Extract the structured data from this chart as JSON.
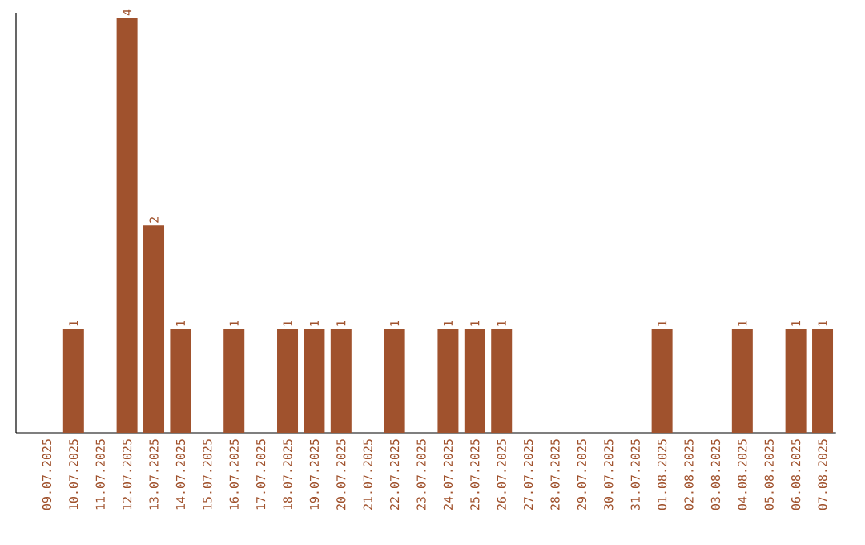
{
  "chart_data": {
    "type": "bar",
    "categories": [
      "09.07.2025",
      "10.07.2025",
      "11.07.2025",
      "12.07.2025",
      "13.07.2025",
      "14.07.2025",
      "15.07.2025",
      "16.07.2025",
      "17.07.2025",
      "18.07.2025",
      "19.07.2025",
      "20.07.2025",
      "21.07.2025",
      "22.07.2025",
      "23.07.2025",
      "24.07.2025",
      "25.07.2025",
      "26.07.2025",
      "27.07.2025",
      "28.07.2025",
      "29.07.2025",
      "30.07.2025",
      "31.07.2025",
      "01.08.2025",
      "02.08.2025",
      "03.08.2025",
      "04.08.2025",
      "05.08.2025",
      "06.08.2025",
      "07.08.2025"
    ],
    "values": [
      0,
      1,
      0,
      4,
      2,
      1,
      0,
      1,
      0,
      1,
      1,
      1,
      0,
      1,
      0,
      1,
      1,
      1,
      0,
      0,
      0,
      0,
      0,
      1,
      0,
      0,
      1,
      0,
      1,
      1
    ],
    "value_labels": [
      null,
      "1",
      null,
      "4",
      "2",
      "1",
      null,
      "1",
      null,
      "1",
      "1",
      "1",
      null,
      "1",
      null,
      "1",
      "1",
      "1",
      null,
      null,
      null,
      null,
      null,
      "1",
      null,
      null,
      "1",
      null,
      "1",
      "1"
    ],
    "color": "#a0522d",
    "ylim": [
      0,
      4.05
    ],
    "tick_labels": "x"
  }
}
